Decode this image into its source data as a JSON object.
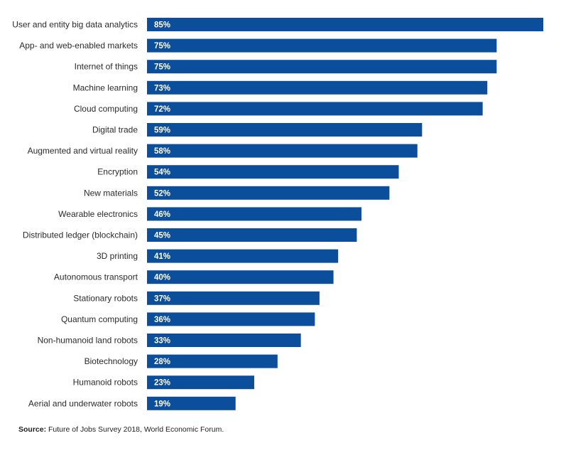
{
  "chart_data": {
    "type": "bar",
    "orientation": "horizontal",
    "categories": [
      "User and entity big data analytics",
      "App- and web-enabled markets",
      "Internet of things",
      "Machine learning",
      "Cloud computing",
      "Digital trade",
      "Augmented and virtual reality",
      "Encryption",
      "New materials",
      "Wearable electronics",
      "Distributed ledger (blockchain)",
      "3D printing",
      "Autonomous transport",
      "Stationary robots",
      "Quantum computing",
      "Non-humanoid land robots",
      "Biotechnology",
      "Humanoid robots",
      "Aerial and underwater robots"
    ],
    "values": [
      85,
      75,
      75,
      73,
      72,
      59,
      58,
      54,
      52,
      46,
      45,
      41,
      40,
      37,
      36,
      33,
      28,
      23,
      19
    ],
    "value_labels": [
      "85%",
      "75%",
      "75%",
      "73%",
      "72%",
      "59%",
      "58%",
      "54%",
      "52%",
      "46%",
      "45%",
      "41%",
      "40%",
      "37%",
      "36%",
      "33%",
      "28%",
      "23%",
      "19%"
    ],
    "xlim": [
      0,
      85
    ],
    "grid": false,
    "legend": "none",
    "bar_color": "#0b4f9c"
  },
  "source": {
    "label": "Source:",
    "text": " Future of Jobs Survey 2018, World Economic Forum."
  }
}
